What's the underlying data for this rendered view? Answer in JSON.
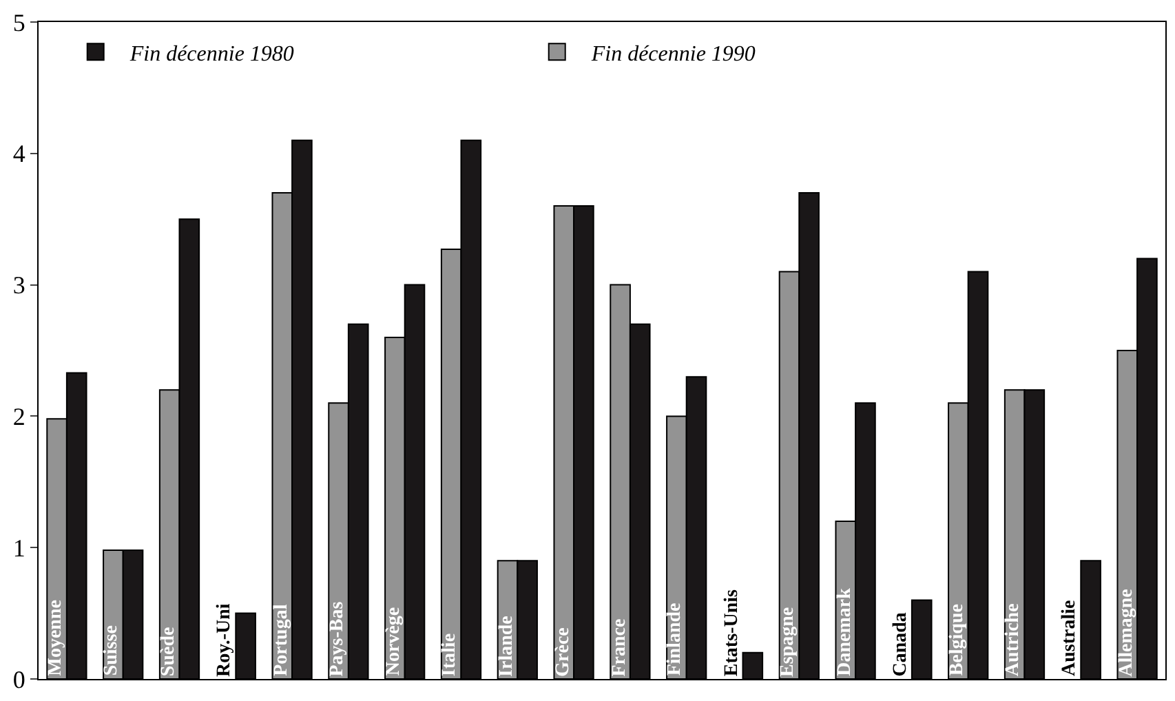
{
  "chart_data": {
    "type": "bar",
    "categories": [
      "Moyenne",
      "Suisse",
      "Suède",
      "Roy.-Uni",
      "Portugal",
      "Pays-Bas",
      "Norvège",
      "Italie",
      "Irlande",
      "Grèce",
      "France",
      "Finlande",
      "Etats-Unis",
      "Espagne",
      "Danemark",
      "Canada",
      "Belgique",
      "Autriche",
      "Australie",
      "Allemagne"
    ],
    "series": [
      {
        "name": "Fin décennie 1990",
        "color": "#939393",
        "values": [
          1.98,
          0.98,
          2.2,
          null,
          3.7,
          2.1,
          2.6,
          3.27,
          0.9,
          3.6,
          3.0,
          2.0,
          null,
          3.1,
          1.2,
          null,
          2.1,
          2.2,
          null,
          2.5
        ]
      },
      {
        "name": "Fin décennie 1980",
        "color": "#1a1718",
        "values": [
          2.33,
          0.98,
          3.5,
          0.5,
          4.1,
          2.7,
          3.0,
          4.1,
          0.9,
          3.6,
          2.7,
          2.3,
          0.2,
          3.7,
          2.1,
          0.6,
          3.1,
          2.2,
          0.9,
          3.2
        ]
      }
    ],
    "ylim": [
      0,
      5
    ],
    "yticks": [
      0,
      1,
      2,
      3,
      4,
      5
    ],
    "legend": "top left"
  }
}
